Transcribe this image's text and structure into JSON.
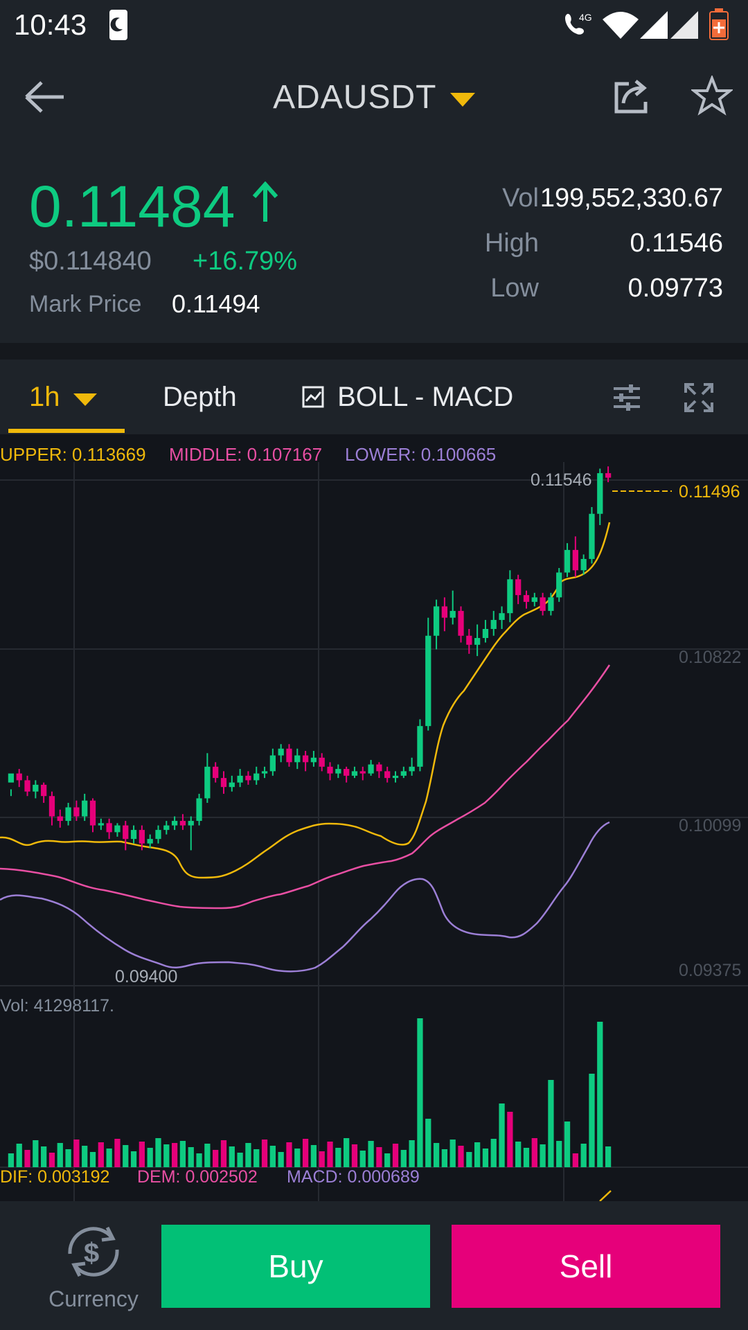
{
  "status_bar": {
    "time": "10:43",
    "network": "4G"
  },
  "header": {
    "pair": "ADAUSDT"
  },
  "ticker": {
    "last_price": "0.11484",
    "usd_price": "$0.114840",
    "change": "+16.79%",
    "mark_label": "Mark Price",
    "mark_value": "0.11494",
    "stats": [
      {
        "label": "Vol",
        "value": "199,552,330.67"
      },
      {
        "label": "High",
        "value": "0.11546"
      },
      {
        "label": "Low",
        "value": "0.09773"
      }
    ]
  },
  "tabs": {
    "interval": "1h",
    "depth": "Depth",
    "indicators": "BOLL - MACD"
  },
  "legend": {
    "upper": "UPPER: 0.113669",
    "middle": "MIDDLE: 0.107167",
    "lower": "LOWER: 0.100665",
    "vol": "Vol: 41298117.",
    "dif": "DIF: 0.003192",
    "dem": "DEM: 0.002502",
    "macd": "MACD: 0.000689"
  },
  "chart_data": {
    "type": "candlestick",
    "y_ticks": [
      "0.10822",
      "0.10099",
      "0.09375"
    ],
    "high_marker": "0.11546",
    "low_marker": "0.09400",
    "last_price_marker": "0.11496",
    "ylim": [
      0.0925,
      0.116
    ],
    "candles": [
      [
        0.1015,
        0.1019,
        0.1012,
        0.1009
      ],
      [
        0.1019,
        0.1016,
        0.1021,
        0.1013
      ],
      [
        0.1016,
        0.1011,
        0.1018,
        0.1009
      ],
      [
        0.1011,
        0.1014,
        0.1016,
        0.1008
      ],
      [
        0.1014,
        0.1009,
        0.1015,
        0.1006
      ],
      [
        0.1009,
        0.1,
        0.1011,
        0.0996
      ],
      [
        0.1,
        0.0998,
        0.1003,
        0.0995
      ],
      [
        0.0998,
        0.1004,
        0.1006,
        0.0996
      ],
      [
        0.1004,
        0.1,
        0.1007,
        0.0998
      ],
      [
        0.1,
        0.1007,
        0.101,
        0.0998
      ],
      [
        0.1007,
        0.0996,
        0.1008,
        0.0993
      ],
      [
        0.0996,
        0.0997,
        0.0999,
        0.0994
      ],
      [
        0.0997,
        0.0993,
        0.0999,
        0.099
      ],
      [
        0.0993,
        0.0996,
        0.0997,
        0.0991
      ],
      [
        0.0996,
        0.099,
        0.0998,
        0.0985
      ],
      [
        0.099,
        0.0994,
        0.0996,
        0.0988
      ],
      [
        0.0994,
        0.0988,
        0.0996,
        0.0985
      ],
      [
        0.0988,
        0.099,
        0.0992,
        0.0986
      ],
      [
        0.099,
        0.0994,
        0.0996,
        0.0988
      ],
      [
        0.0994,
        0.0996,
        0.0998,
        0.0992
      ],
      [
        0.0996,
        0.0998,
        0.1,
        0.0994
      ],
      [
        0.0998,
        0.0996,
        0.1001,
        0.0994
      ],
      [
        0.0996,
        0.0998,
        0.1,
        0.0985
      ],
      [
        0.0998,
        0.1008,
        0.101,
        0.0996
      ],
      [
        0.1008,
        0.1022,
        0.1028,
        0.1006
      ],
      [
        0.1022,
        0.1017,
        0.1024,
        0.1015
      ],
      [
        0.1017,
        0.1013,
        0.102,
        0.101
      ],
      [
        0.1013,
        0.1015,
        0.1018,
        0.1011
      ],
      [
        0.1015,
        0.1018,
        0.1021,
        0.1013
      ],
      [
        0.1018,
        0.1016,
        0.102,
        0.1014
      ],
      [
        0.1016,
        0.1019,
        0.1022,
        0.1014
      ],
      [
        0.1019,
        0.102,
        0.1022,
        0.1017
      ],
      [
        0.102,
        0.1027,
        0.103,
        0.1018
      ],
      [
        0.1027,
        0.103,
        0.1032,
        0.1024
      ],
      [
        0.103,
        0.1024,
        0.1032,
        0.1022
      ],
      [
        0.1024,
        0.1027,
        0.103,
        0.1021
      ],
      [
        0.1027,
        0.1024,
        0.1029,
        0.102
      ],
      [
        0.1024,
        0.1026,
        0.1029,
        0.1022
      ],
      [
        0.1026,
        0.1022,
        0.1028,
        0.102
      ],
      [
        0.1022,
        0.1019,
        0.1024,
        0.1016
      ],
      [
        0.1019,
        0.1021,
        0.1023,
        0.1017
      ],
      [
        0.1021,
        0.1018,
        0.1022,
        0.1015
      ],
      [
        0.1018,
        0.102,
        0.1022,
        0.1017
      ],
      [
        0.102,
        0.1019,
        0.1022,
        0.1016
      ],
      [
        0.1019,
        0.1023,
        0.1025,
        0.1018
      ],
      [
        0.1023,
        0.102,
        0.1024,
        0.1017
      ],
      [
        0.102,
        0.1017,
        0.1022,
        0.1015
      ],
      [
        0.1017,
        0.1018,
        0.102,
        0.1015
      ],
      [
        0.1018,
        0.102,
        0.1022,
        0.1017
      ],
      [
        0.102,
        0.1022,
        0.1026,
        0.1018
      ],
      [
        0.1022,
        0.104,
        0.1043,
        0.102
      ],
      [
        0.104,
        0.108,
        0.1088,
        0.1038
      ],
      [
        0.108,
        0.1093,
        0.1096,
        0.1074
      ],
      [
        0.1093,
        0.1088,
        0.1097,
        0.1082
      ],
      [
        0.1088,
        0.1091,
        0.11,
        0.1085
      ],
      [
        0.1091,
        0.108,
        0.1093,
        0.1077
      ],
      [
        0.108,
        0.1076,
        0.1083,
        0.1072
      ],
      [
        0.1076,
        0.1079,
        0.1085,
        0.1071
      ],
      [
        0.1079,
        0.1083,
        0.1087,
        0.1077
      ],
      [
        0.1083,
        0.1087,
        0.1091,
        0.108
      ],
      [
        0.1087,
        0.109,
        0.1093,
        0.1083
      ],
      [
        0.109,
        0.1105,
        0.1109,
        0.1086
      ],
      [
        0.1105,
        0.1098,
        0.1107,
        0.1094
      ],
      [
        0.1098,
        0.1095,
        0.11,
        0.1092
      ],
      [
        0.1095,
        0.1097,
        0.1099,
        0.1093
      ],
      [
        0.1097,
        0.1091,
        0.1099,
        0.1089
      ],
      [
        0.1091,
        0.1097,
        0.1099,
        0.1089
      ],
      [
        0.1097,
        0.1108,
        0.111,
        0.1095
      ],
      [
        0.1108,
        0.1118,
        0.1121,
        0.1106
      ],
      [
        0.1118,
        0.1109,
        0.1124,
        0.1106
      ],
      [
        0.1109,
        0.1114,
        0.1116,
        0.1107
      ],
      [
        0.1114,
        0.1134,
        0.1137,
        0.1112
      ],
      [
        0.1134,
        0.1152,
        0.1154,
        0.1129
      ],
      [
        0.1152,
        0.115,
        0.1155,
        0.1148
      ]
    ],
    "volume": [
      "u",
      "u",
      "d",
      "u",
      "u",
      "d",
      "u",
      "u",
      "d",
      "u",
      "u",
      "d",
      "u",
      "d",
      "u",
      "u",
      "d",
      "u",
      "u",
      "u",
      "d",
      "u",
      "u",
      "u",
      "u",
      "d",
      "d",
      "u",
      "u",
      "u",
      "u",
      "d",
      "u",
      "u",
      "d",
      "u",
      "d",
      "u",
      "d",
      "d",
      "u",
      "u",
      "d",
      "u",
      "u",
      "d",
      "u",
      "d",
      "u",
      "u",
      "u",
      "u",
      "u",
      "u",
      "u",
      "d",
      "u",
      "u",
      "u",
      "u",
      "u",
      "d",
      "u",
      "u",
      "d",
      "u",
      "u",
      "u",
      "u",
      "d",
      "u",
      "u",
      "u",
      "u"
    ]
  },
  "bottom": {
    "currency": "Currency",
    "buy": "Buy",
    "sell": "Sell"
  }
}
